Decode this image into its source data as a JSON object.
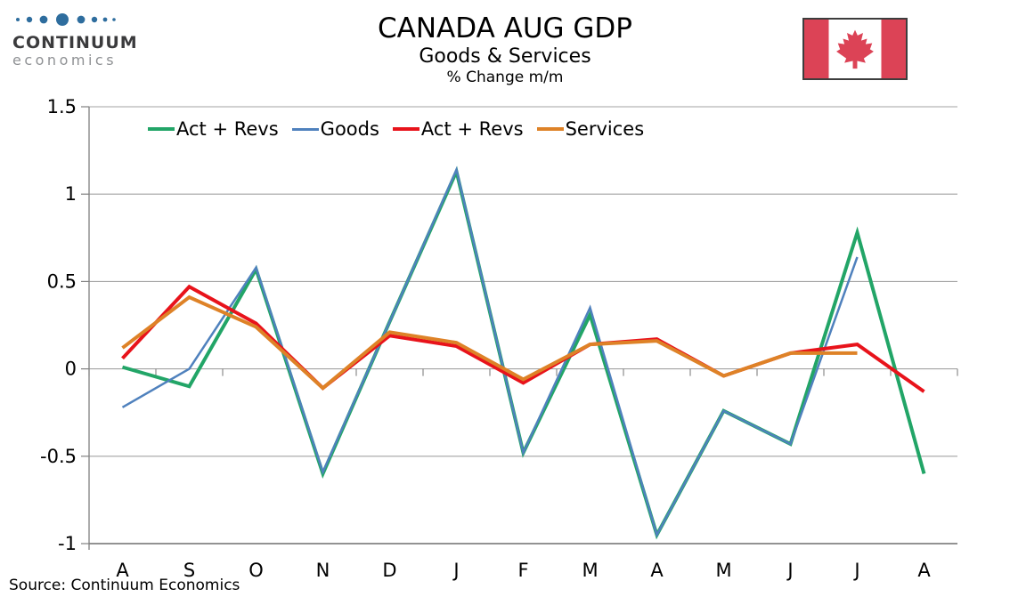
{
  "header": {
    "logo_line1": "CONTINUUM",
    "logo_line2": "economics",
    "title": "CANADA AUG GDP",
    "subtitle": "Goods & Services",
    "unit_note": "% Change m/m"
  },
  "source_note": "Source: Continuum Economics",
  "flag_colors": {
    "red": "#DC4356",
    "white": "#ffffff",
    "border": "#3d3d3d"
  },
  "chart_data": {
    "type": "line",
    "title": "CANADA AUG GDP",
    "subtitle": "Goods & Services",
    "value_unit": "% Change m/m",
    "categories": [
      "A",
      "S",
      "O",
      "N",
      "D",
      "J",
      "F",
      "M",
      "A",
      "M",
      "J",
      "J",
      "A"
    ],
    "ylim": [
      -1,
      1.5
    ],
    "ytick_interval": 0.5,
    "yticks": [
      1.5,
      1,
      0.5,
      0,
      -0.5,
      -1
    ],
    "ytick_labels": [
      "1.5",
      "1",
      "0.5",
      "0",
      "-0.5",
      "-1"
    ],
    "grid": true,
    "legend_position": "top",
    "series": [
      {
        "name": "Act + Revs",
        "color": "#22A567",
        "width": 4,
        "values": [
          0.01,
          -0.1,
          0.57,
          -0.6,
          0.27,
          1.13,
          -0.48,
          0.31,
          -0.95,
          -0.24,
          -0.43,
          0.78,
          -0.6
        ]
      },
      {
        "name": "Goods",
        "color": "#4F81BD",
        "width": 2.5,
        "values": [
          -0.22,
          0.0,
          0.58,
          -0.59,
          0.27,
          1.14,
          -0.48,
          0.35,
          -0.95,
          -0.24,
          -0.43,
          0.64,
          null
        ]
      },
      {
        "name": "Act + Revs",
        "color": "#E8131B",
        "width": 4,
        "values": [
          0.06,
          0.47,
          0.26,
          -0.11,
          0.19,
          0.13,
          -0.08,
          0.14,
          0.17,
          -0.04,
          0.09,
          0.14,
          -0.13
        ]
      },
      {
        "name": "Services",
        "color": "#DE8227",
        "width": 4,
        "values": [
          0.12,
          0.41,
          0.24,
          -0.11,
          0.21,
          0.15,
          -0.06,
          0.14,
          0.16,
          -0.04,
          0.09,
          0.09,
          null
        ]
      }
    ]
  }
}
